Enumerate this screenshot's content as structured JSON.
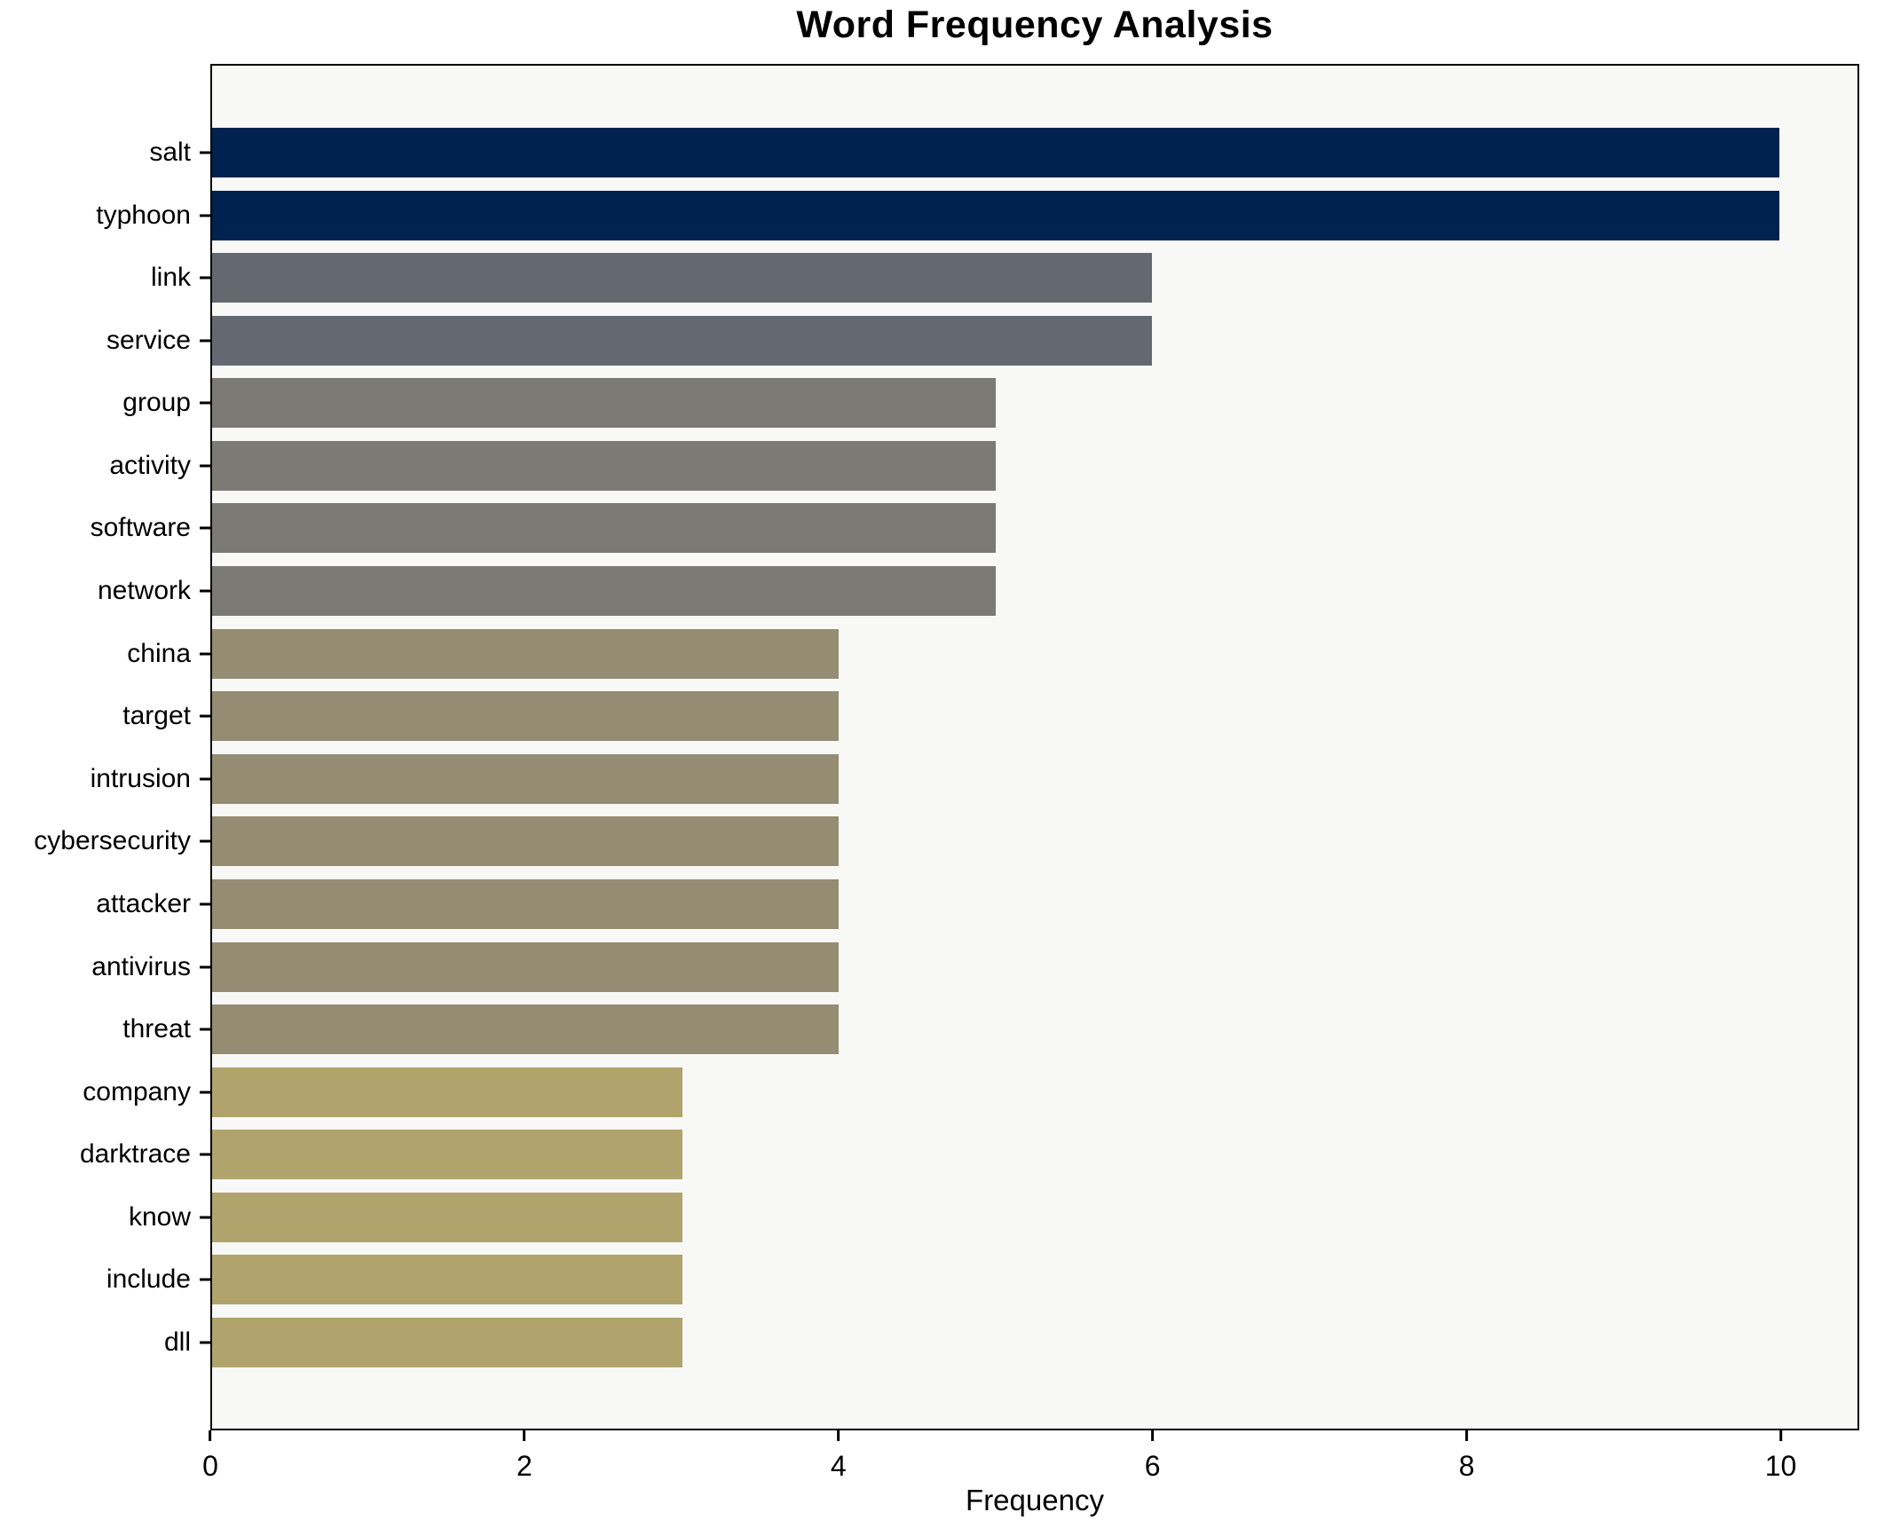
{
  "chart_data": {
    "type": "bar",
    "orientation": "horizontal",
    "title": "Word Frequency Analysis",
    "xlabel": "Frequency",
    "ylabel": "",
    "xlim": [
      0,
      10.5
    ],
    "xticks": [
      0,
      2,
      4,
      6,
      8,
      10
    ],
    "grid": false,
    "legend": "none",
    "plot_background": "#f8f8f7",
    "figure_background": "#ffffff",
    "axis_color": "#000000",
    "categories": [
      "salt",
      "typhoon",
      "link",
      "service",
      "group",
      "activity",
      "software",
      "network",
      "china",
      "target",
      "intrusion",
      "cybersecurity",
      "attacker",
      "antivirus",
      "threat",
      "company",
      "darktrace",
      "know",
      "include",
      "dll"
    ],
    "values": [
      10,
      10,
      6,
      6,
      5,
      5,
      5,
      5,
      4,
      4,
      4,
      4,
      4,
      4,
      4,
      3,
      3,
      3,
      3,
      3
    ],
    "bar_colors": [
      "#00224e",
      "#00224e",
      "#646870",
      "#646870",
      "#7b7a74",
      "#7b7a74",
      "#7b7a74",
      "#7b7a74",
      "#948d73",
      "#948d73",
      "#948d73",
      "#948d73",
      "#948d73",
      "#948d73",
      "#948d73",
      "#b0a46c",
      "#b0a46c",
      "#b0a46c",
      "#b0a46c",
      "#b0a46c"
    ],
    "value_color_map": {
      "10": "#00224e",
      "6": "#646870",
      "5": "#7b7a74",
      "4": "#948d73",
      "3": "#b0a46c"
    }
  }
}
